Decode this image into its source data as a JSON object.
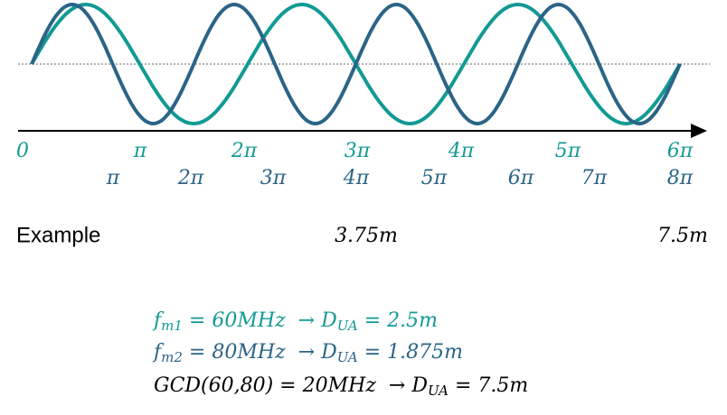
{
  "axis_labels_1": [
    "0",
    "π",
    "2π",
    "3π",
    "4π",
    "5π",
    "6π"
  ],
  "axis_labels_2": [
    "π",
    "2π",
    "3π",
    "4π",
    "5π",
    "6π",
    "7π",
    "8π"
  ],
  "example": {
    "label": "Example",
    "mid": "3.75m",
    "end": "7.5m"
  },
  "equations": [
    {
      "color": "#129a94",
      "parts": [
        {
          "t": "f"
        },
        {
          "t": "m1",
          "sub": true
        },
        {
          "t": " = 60MHz  → D"
        },
        {
          "t": "UA",
          "sub": true
        },
        {
          "t": " = 2.5m"
        }
      ]
    },
    {
      "color": "#2b6487",
      "parts": [
        {
          "t": "f"
        },
        {
          "t": "m2",
          "sub": true
        },
        {
          "t": " = 80MHz  → D"
        },
        {
          "t": "UA",
          "sub": true
        },
        {
          "t": " = 1.875m"
        }
      ]
    },
    {
      "color": "#000000",
      "parts": [
        {
          "t": "GCD(60,80) = 20MHz  → D"
        },
        {
          "t": "UA",
          "sub": true
        },
        {
          "t": " = 7.5m"
        }
      ]
    }
  ]
}
